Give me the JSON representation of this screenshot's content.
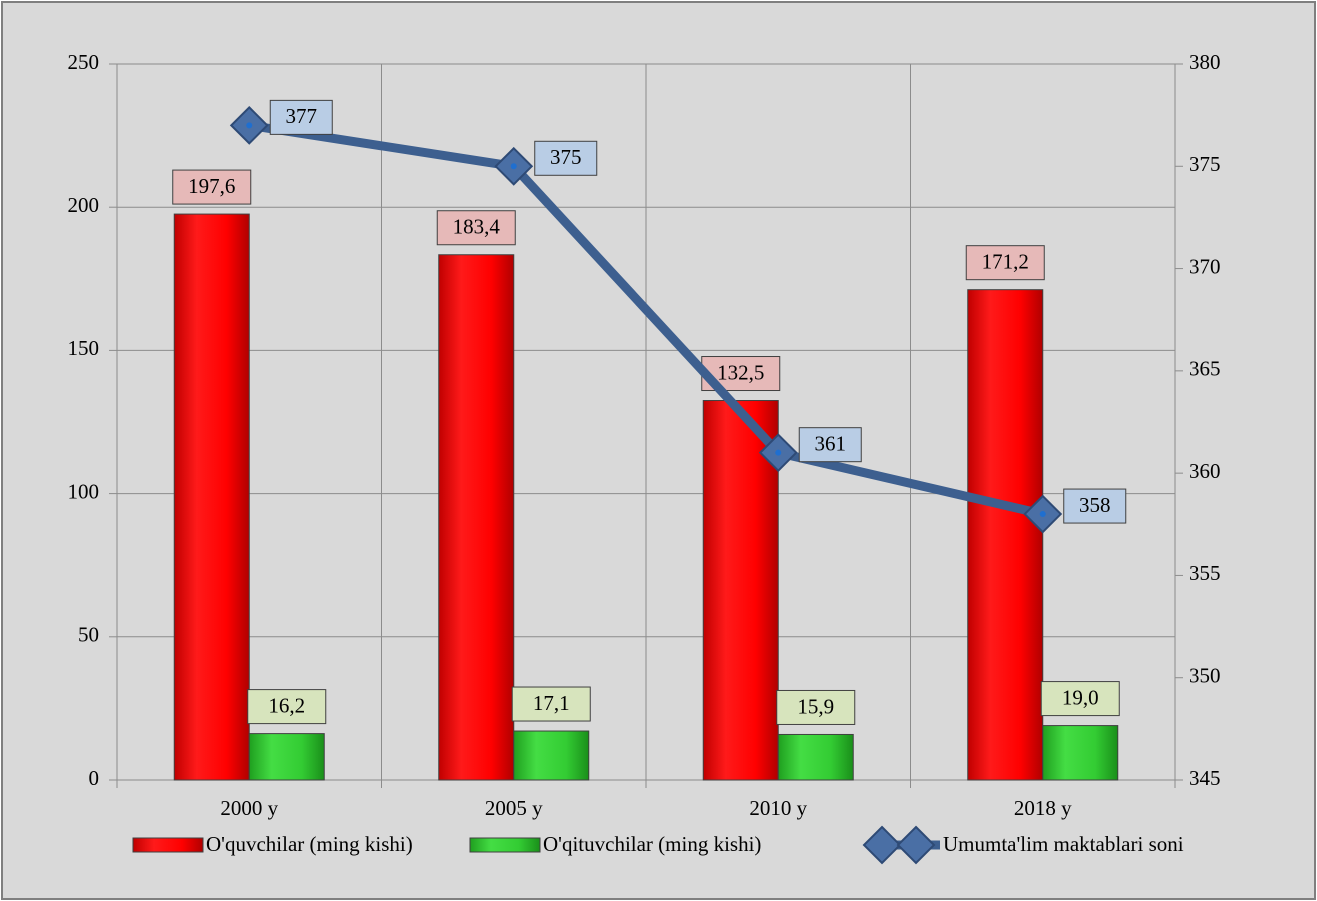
{
  "chart_data": {
    "type": "bar",
    "categories": [
      "2000 y",
      "2005 y",
      "2010 y",
      "2018 y"
    ],
    "series": [
      {
        "name": "O'quvchilar (ming kishi)",
        "color": "#ff0000",
        "values": [
          197.6,
          183.4,
          132.5,
          171.2
        ],
        "value_labels": [
          "197,6",
          "183,4",
          "132,5",
          "171,2"
        ]
      },
      {
        "name": "O'qituvchilar (ming kishi)",
        "color": "#33cc33",
        "values": [
          16.2,
          17.1,
          15.9,
          19.0
        ],
        "value_labels": [
          "16,2",
          "17,1",
          "15,9",
          "19,0"
        ]
      },
      {
        "name": "Umumta'lim maktablari soni",
        "color": "#3d5f8f",
        "type": "line",
        "axis": "y2",
        "values": [
          377,
          375,
          361,
          358
        ]
      }
    ],
    "ylim": [
      0,
      250
    ],
    "yticks": [
      0,
      50,
      100,
      150,
      200,
      250
    ],
    "y2lim": [
      345,
      380
    ],
    "y2ticks": [
      345,
      350,
      355,
      360,
      365,
      370,
      375,
      380
    ],
    "grid": true,
    "legend": "bottom"
  }
}
